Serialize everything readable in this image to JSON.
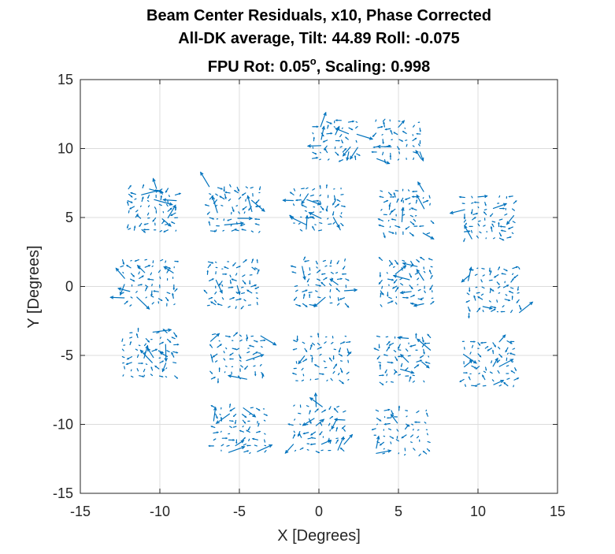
{
  "chart_data": {
    "type": "quiver",
    "title_lines": [
      "Beam Center Residuals, x10, Phase Corrected",
      "All-DK average, Tilt: 44.89  Roll: -0.075",
      "FPU Rot: 0.05",
      "o",
      ", Scaling: 0.998"
    ],
    "xlabel": "X [Degrees]",
    "ylabel": "Y [Degrees]",
    "xlim": [
      -15,
      15
    ],
    "ylim": [
      -15,
      15
    ],
    "xticks": [
      -15,
      -10,
      -5,
      0,
      5,
      10,
      15
    ],
    "yticks": [
      -15,
      -10,
      -5,
      0,
      5,
      10,
      15
    ],
    "xtick_labels": [
      "-15",
      "-10",
      "-5",
      "0",
      "5",
      "10",
      "15"
    ],
    "ytick_labels": [
      "-15",
      "-10",
      "-5",
      "0",
      "5",
      "10",
      "15"
    ],
    "grid": true,
    "series": [
      {
        "color": "#0072bd",
        "tiles": [
          {
            "cx": 1.0,
            "cy": 10.6,
            "n": 7,
            "half": 1.6,
            "seed": 11
          },
          {
            "cx": 5.0,
            "cy": 10.6,
            "n": 7,
            "half": 1.6,
            "seed": 12
          },
          {
            "cx": -10.5,
            "cy": 5.6,
            "n": 8,
            "half": 1.7,
            "seed": 21
          },
          {
            "cx": -5.3,
            "cy": 5.6,
            "n": 8,
            "half": 1.8,
            "seed": 22
          },
          {
            "cx": -0.1,
            "cy": 5.6,
            "n": 8,
            "half": 1.7,
            "seed": 23
          },
          {
            "cx": 5.5,
            "cy": 5.4,
            "n": 8,
            "half": 1.7,
            "seed": 24
          },
          {
            "cx": 10.7,
            "cy": 5.0,
            "n": 8,
            "half": 1.7,
            "seed": 25
          },
          {
            "cx": -10.7,
            "cy": 0.3,
            "n": 8,
            "half": 1.8,
            "seed": 31
          },
          {
            "cx": -5.4,
            "cy": 0.2,
            "n": 8,
            "half": 1.8,
            "seed": 32
          },
          {
            "cx": 0.1,
            "cy": 0.3,
            "n": 8,
            "half": 1.8,
            "seed": 33
          },
          {
            "cx": 5.5,
            "cy": 0.3,
            "n": 8,
            "half": 1.8,
            "seed": 34
          },
          {
            "cx": 11.0,
            "cy": -0.3,
            "n": 8,
            "half": 1.8,
            "seed": 35
          },
          {
            "cx": -10.7,
            "cy": -4.9,
            "n": 8,
            "half": 1.8,
            "seed": 41
          },
          {
            "cx": -5.2,
            "cy": -5.1,
            "n": 8,
            "half": 1.8,
            "seed": 42
          },
          {
            "cx": 0.2,
            "cy": -5.2,
            "n": 8,
            "half": 1.8,
            "seed": 43
          },
          {
            "cx": 5.4,
            "cy": -5.3,
            "n": 8,
            "half": 1.8,
            "seed": 44
          },
          {
            "cx": 10.7,
            "cy": -5.6,
            "n": 8,
            "half": 1.8,
            "seed": 45
          },
          {
            "cx": -5.0,
            "cy": -10.4,
            "n": 8,
            "half": 1.8,
            "seed": 51
          },
          {
            "cx": 0.0,
            "cy": -10.3,
            "n": 8,
            "half": 1.8,
            "seed": 52
          },
          {
            "cx": 5.2,
            "cy": -10.6,
            "n": 8,
            "half": 1.8,
            "seed": 53
          }
        ]
      }
    ]
  }
}
